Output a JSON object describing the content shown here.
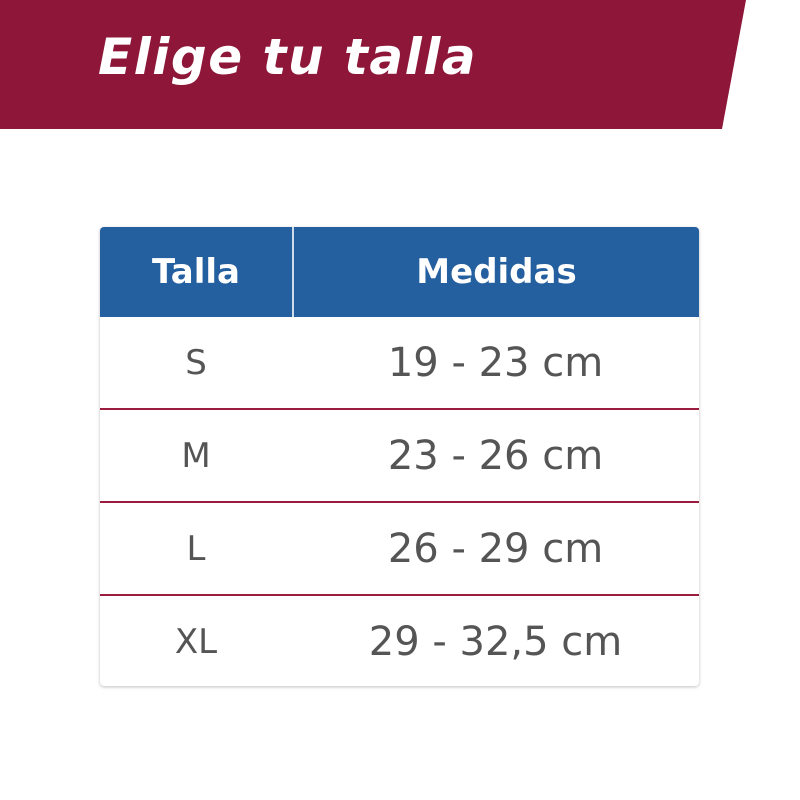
{
  "header": {
    "title": "Elige tu talla",
    "color": "#8e1639"
  },
  "table": {
    "columns": [
      "Talla",
      "Medidas"
    ],
    "header_color": "#245f9f",
    "rows": [
      {
        "size": "S",
        "measure": "19 - 23 cm"
      },
      {
        "size": "M",
        "measure": "23 - 26 cm"
      },
      {
        "size": "L",
        "measure": "26 - 29 cm"
      },
      {
        "size": "XL",
        "measure": "29 - 32,5 cm"
      }
    ]
  }
}
